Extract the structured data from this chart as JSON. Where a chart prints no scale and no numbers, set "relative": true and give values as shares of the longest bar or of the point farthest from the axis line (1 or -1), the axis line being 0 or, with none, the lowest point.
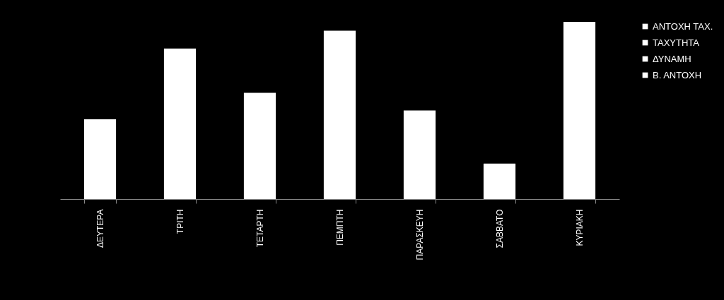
{
  "chart_data": {
    "type": "bar",
    "relative": true,
    "legend": "top right",
    "categories": [
      "ΔΕΥΤΕΡΑ",
      "ΤΡΙΤΗ",
      "ΤΕΤΑΡΤΗ",
      "ΠΕΜΠΤΗ",
      "ΠΑΡΑΣΚΕΥΗ",
      "ΣΑΒΒΑΤΟ",
      "ΚΥΡΙΑΚΗ"
    ],
    "series": [
      {
        "name": "ΑΝΤΟΧΗ ΤΑΧ.",
        "color": "#ffffff",
        "values": [
          0.45,
          0.85,
          0.6,
          0.95,
          0.5,
          0.2,
          1
        ]
      },
      {
        "name": "ΤΑΧΥΤΗΤΑ",
        "color": "#ffffff",
        "values": [
          null,
          null,
          null,
          null,
          null,
          null,
          null
        ]
      },
      {
        "name": "ΔΥΝΑΜΗ",
        "color": "#ffffff",
        "values": [
          null,
          null,
          null,
          null,
          null,
          null,
          null
        ]
      },
      {
        "name": "Β. ΑΝΤΟΧΗ",
        "color": "#ffffff",
        "values": [
          null,
          null,
          null,
          null,
          null,
          null,
          null
        ]
      }
    ]
  }
}
